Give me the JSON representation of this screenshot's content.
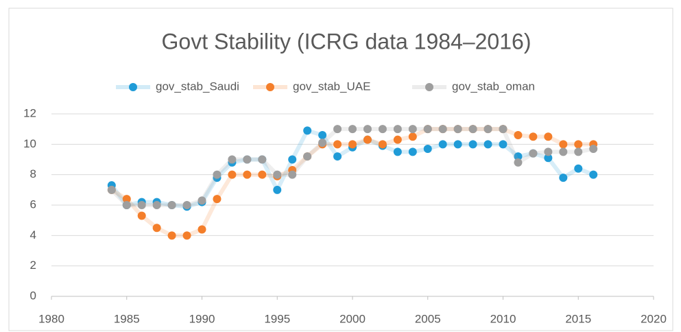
{
  "chart_data": {
    "type": "line",
    "title": "Govt Stability (ICRG data 1984–2016)",
    "x": [
      1984,
      1985,
      1986,
      1987,
      1988,
      1989,
      1990,
      1991,
      1992,
      1993,
      1994,
      1995,
      1996,
      1997,
      1998,
      1999,
      2000,
      2001,
      2002,
      2003,
      2004,
      2005,
      2006,
      2007,
      2008,
      2009,
      2010,
      2011,
      2012,
      2013,
      2014,
      2015,
      2016
    ],
    "series": [
      {
        "name": "gov_stab_Saudi",
        "color": "#1f9bd7",
        "values": [
          7.3,
          6.0,
          6.2,
          6.2,
          6.0,
          5.9,
          6.2,
          7.8,
          8.8,
          9.0,
          9.0,
          7.0,
          9.0,
          10.9,
          10.6,
          9.2,
          9.8,
          10.3,
          9.9,
          9.5,
          9.5,
          9.7,
          10,
          10,
          10,
          10,
          10,
          9.2,
          9.4,
          9.1,
          7.8,
          8.4,
          8.0
        ]
      },
      {
        "name": "gov_stab_UAE",
        "color": "#f47e2a",
        "values": [
          7.0,
          6.4,
          5.3,
          4.5,
          4.0,
          4.0,
          4.4,
          6.4,
          8,
          8,
          8,
          7.9,
          8.3,
          9.2,
          10.0,
          10,
          10,
          10.3,
          10,
          10.3,
          10.5,
          11,
          11,
          11,
          11,
          11,
          11,
          10.6,
          10.5,
          10.5,
          10,
          10,
          10
        ]
      },
      {
        "name": "gov_stab_oman",
        "color": "#9e9e9e",
        "values": [
          7.0,
          6,
          6,
          6,
          6,
          6,
          6.3,
          8,
          9,
          9,
          9,
          8,
          8,
          9.2,
          10.1,
          11,
          11,
          11,
          11,
          11,
          11,
          11,
          11,
          11,
          11,
          11,
          11,
          8.8,
          9.4,
          9.5,
          9.5,
          9.5,
          9.7
        ]
      }
    ],
    "xlim": [
      1980,
      2020
    ],
    "xticks": [
      1980,
      1985,
      1990,
      1995,
      2000,
      2005,
      2010,
      2015,
      2020
    ],
    "ylim": [
      0,
      12
    ],
    "yticks": [
      0,
      2,
      4,
      6,
      8,
      10,
      12
    ],
    "grid": true,
    "legend": "top"
  }
}
